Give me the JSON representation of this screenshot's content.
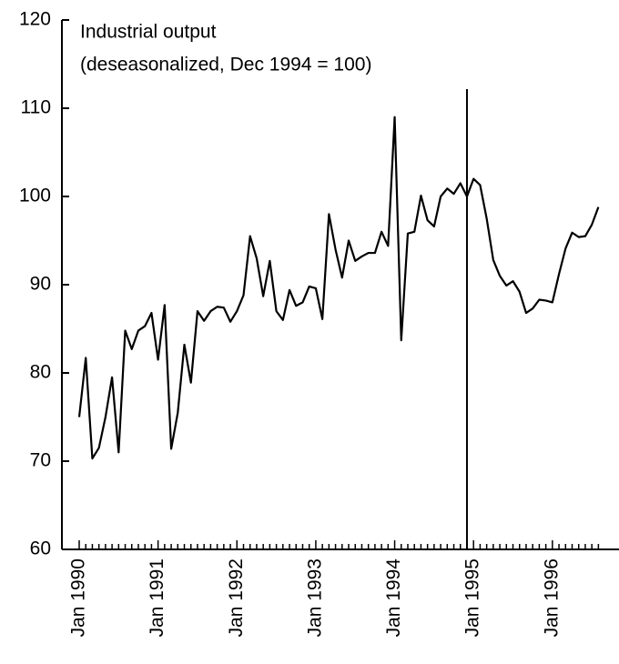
{
  "chart_data": {
    "type": "line",
    "title": "Industrial output",
    "subtitle": "(deseasonalized, Dec 1994 = 100)",
    "categories": [
      "Jan 1990",
      null,
      null,
      null,
      null,
      null,
      null,
      null,
      null,
      null,
      null,
      null,
      "Jan 1991",
      null,
      null,
      null,
      null,
      null,
      null,
      null,
      null,
      null,
      null,
      null,
      "Jan 1992",
      null,
      null,
      null,
      null,
      null,
      null,
      null,
      null,
      null,
      null,
      null,
      "Jan 1993",
      null,
      null,
      null,
      null,
      null,
      null,
      null,
      null,
      null,
      null,
      null,
      "Jan 1994",
      null,
      null,
      null,
      null,
      null,
      null,
      null,
      null,
      null,
      null,
      null,
      "Jan 1995",
      null,
      null,
      null,
      null,
      null,
      null,
      null,
      null,
      null,
      null,
      null,
      "Jan 1996",
      null,
      null,
      null,
      null,
      null,
      null,
      null
    ],
    "values": [
      75,
      81.7,
      70.3,
      71.5,
      75,
      79.5,
      71,
      84.8,
      82.7,
      84.8,
      85.3,
      86.8,
      81.5,
      87.7,
      71.4,
      75.5,
      83.2,
      78.9,
      87,
      85.9,
      87,
      87.5,
      87.4,
      85.8,
      87,
      88.8,
      95.5,
      93,
      88.7,
      92.7,
      87,
      86,
      89.4,
      87.6,
      88,
      89.8,
      89.6,
      86.1,
      98,
      94,
      90.8,
      95,
      92.7,
      93.2,
      93.6,
      93.6,
      96,
      94.4,
      109,
      83.7,
      95.8,
      96,
      100.1,
      97.3,
      96.6,
      100,
      100.9,
      100.3,
      101.5,
      100,
      102,
      101.3,
      97.5,
      92.8,
      91,
      89.9,
      90.4,
      89.2,
      86.8,
      87.3,
      88.3,
      88.2,
      88,
      91.2,
      94.1,
      95.9,
      95.4,
      95.5,
      96.8,
      98.8
    ],
    "color": "#000000",
    "marker_index": 59,
    "ylim": [
      60,
      120
    ],
    "yticks": [
      60,
      70,
      80,
      90,
      100,
      110,
      120
    ],
    "grid": false
  }
}
